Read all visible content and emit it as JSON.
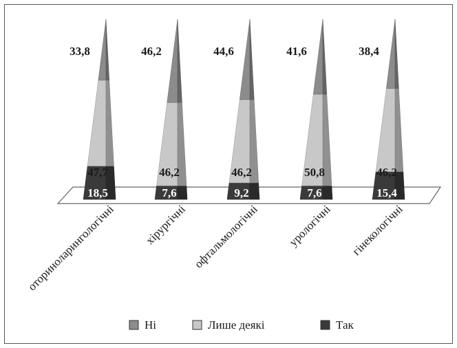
{
  "chart_data": {
    "type": "bar",
    "categories": [
      "оториноларингологічні",
      "хірургічні",
      "офтальмологічні",
      "урологічні",
      "гінекологічні"
    ],
    "series": [
      {
        "name": "Ні",
        "values": [
          33.8,
          46.2,
          44.6,
          41.6,
          38.4
        ]
      },
      {
        "name": "Лише деякі",
        "values": [
          47.7,
          46.2,
          46.2,
          50.8,
          46.2
        ]
      },
      {
        "name": "Так",
        "values": [
          18.5,
          7.6,
          9.2,
          7.6,
          15.4
        ]
      }
    ],
    "value_labels": [
      [
        "33,8",
        "46,2",
        "44,6",
        "41,6",
        "38,4"
      ],
      [
        "47,7",
        "46,2",
        "46,2",
        "50,8",
        "46,2"
      ],
      [
        "18,5",
        "7,6",
        "9,2",
        "7,6",
        "15,4"
      ]
    ],
    "stacked": true,
    "percent_stacked": true,
    "bar_shape": "pyramid",
    "ylim": [
      0,
      100
    ],
    "grid": false,
    "legend": "bottom",
    "colors": {
      "Ні": "#8c8c8c",
      "Лише деякі": "#c8c8c8",
      "Так": "#3a3a3a"
    }
  }
}
